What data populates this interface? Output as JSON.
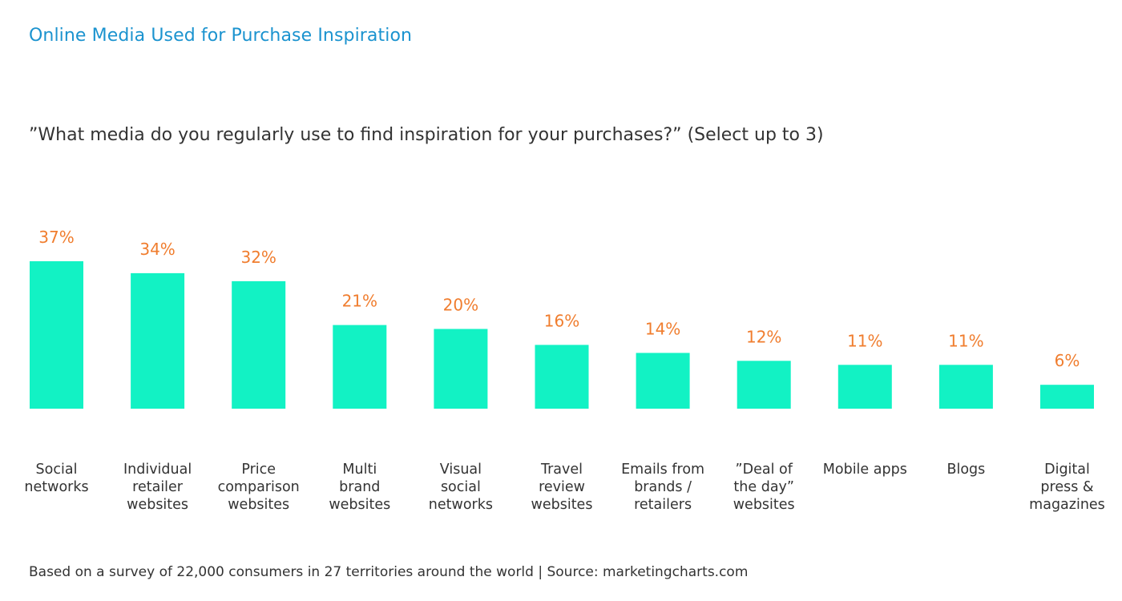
{
  "header": {
    "title": "Online Media Used for Purchase Inspiration",
    "subtitle": "”What media do you regularly use to find inspiration for your purchases?” (Select up to 3)"
  },
  "footer": {
    "source_note": "Based on a survey of 22,000 consumers in 27 territories around the world | Source: marketingcharts.com"
  },
  "colors": {
    "bar": "#12f2c4",
    "value_label": "#f07d2e",
    "title": "#1b93cf",
    "text": "#333333"
  },
  "chart_data": {
    "type": "bar",
    "title": "Online Media Used for Purchase Inspiration",
    "subtitle": "”What media do you regularly use to find inspiration for your purchases?” (Select up to 3)",
    "xlabel": "",
    "ylabel": "",
    "ylim": [
      0,
      37
    ],
    "grid": false,
    "legend": "none",
    "unit": "%",
    "categories": [
      [
        "Social",
        "networks"
      ],
      [
        "Individual",
        "retailer",
        "websites"
      ],
      [
        "Price",
        "comparison",
        "websites"
      ],
      [
        "Multi",
        "brand",
        "websites"
      ],
      [
        "Visual",
        "social",
        "networks"
      ],
      [
        "Travel",
        "review",
        "websites"
      ],
      [
        "Emails from",
        "brands /",
        "retailers"
      ],
      [
        "”Deal of",
        "the day”",
        "websites"
      ],
      [
        "Mobile apps"
      ],
      [
        "Blogs"
      ],
      [
        "Digital",
        "press &",
        "magazines"
      ]
    ],
    "values": [
      37,
      34,
      32,
      21,
      20,
      16,
      14,
      12,
      11,
      11,
      6
    ],
    "value_labels": [
      "37%",
      "34%",
      "32%",
      "21%",
      "20%",
      "16%",
      "14%",
      "12%",
      "11%",
      "11%",
      "6%"
    ]
  }
}
